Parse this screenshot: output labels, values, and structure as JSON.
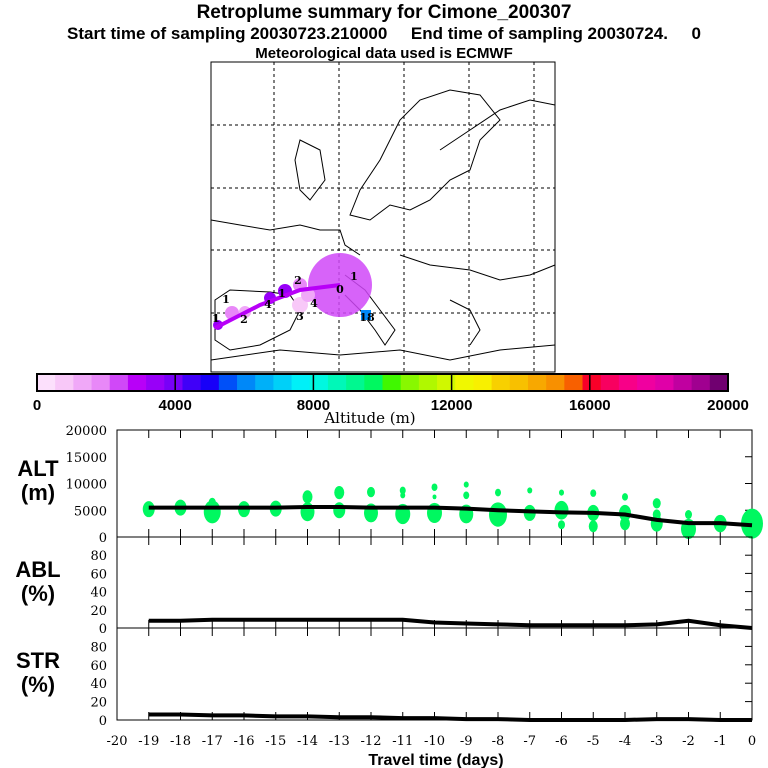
{
  "header": {
    "title": "Retroplume summary for Cimone_200307",
    "subtitle": "Start time of sampling 20030723.210000     End time of sampling 20030724.     0",
    "met": "Meteorological data used is ECMWF"
  },
  "colorbar": {
    "label": "Altitude (m)",
    "ticks": [
      "0",
      "4000",
      "8000",
      "12000",
      "16000",
      "20000"
    ],
    "colors": [
      "#fce0fc",
      "#f8c8f8",
      "#f0a8f8",
      "#e888f8",
      "#d048f8",
      "#b800f8",
      "#9800f8",
      "#7800f8",
      "#4000f8",
      "#1800f8",
      "#0050f8",
      "#0088f8",
      "#00b0f8",
      "#00d0f8",
      "#00f0f8",
      "#00f8e0",
      "#00f8b8",
      "#00f890",
      "#00f860",
      "#40f800",
      "#88f800",
      "#b0f800",
      "#d0f800",
      "#f0f800",
      "#f8f000",
      "#f8d000",
      "#f8c000",
      "#f8a800",
      "#f89000",
      "#f86000",
      "#f80028",
      "#f80060",
      "#f80088",
      "#f000a0",
      "#e000a8",
      "#c000a0",
      "#a00090",
      "#700070"
    ]
  },
  "map": {
    "labels": [
      "0",
      "1",
      "1",
      "1",
      "2",
      "3",
      "4",
      "4",
      "1",
      "2",
      "18"
    ]
  },
  "chart_data": [
    {
      "type": "line",
      "name": "ALT",
      "ylabel": "ALT\n(m)",
      "ylabel_lines": [
        "ALT",
        "(m)"
      ],
      "ylim": [
        0,
        20000
      ],
      "yticks": [
        "0",
        "5000",
        "10000",
        "15000",
        "20000"
      ],
      "x": [
        -19,
        -18,
        -17,
        -16,
        -15,
        -14,
        -13,
        -12,
        -11,
        -10,
        -9,
        -8,
        -7,
        -6,
        -5,
        -4,
        -3,
        -2,
        -1,
        0
      ],
      "values": [
        5500,
        5500,
        5500,
        5500,
        5500,
        5600,
        5600,
        5500,
        5500,
        5500,
        5300,
        5000,
        4800,
        4600,
        4500,
        4200,
        3200,
        2600,
        2600,
        2200
      ],
      "clusters": [
        [
          -19,
          5200,
          1.0
        ],
        [
          -18,
          5500,
          1.0
        ],
        [
          -17,
          4700,
          1.5
        ],
        [
          -17,
          6500,
          0.5
        ],
        [
          -16,
          5200,
          1.0
        ],
        [
          -15,
          5300,
          1.0
        ],
        [
          -14,
          4700,
          1.2
        ],
        [
          -14,
          7500,
          0.8
        ],
        [
          -13,
          5000,
          1.0
        ],
        [
          -13,
          8300,
          0.8
        ],
        [
          -12,
          4500,
          1.2
        ],
        [
          -12,
          8400,
          0.6
        ],
        [
          -11,
          4300,
          1.3
        ],
        [
          -11,
          8700,
          0.4
        ],
        [
          -11,
          7800,
          0.3
        ],
        [
          -10,
          4500,
          1.3
        ],
        [
          -10,
          9300,
          0.4
        ],
        [
          -10,
          7500,
          0.2
        ],
        [
          -9,
          4300,
          1.2
        ],
        [
          -9,
          9800,
          0.3
        ],
        [
          -9,
          7800,
          0.4
        ],
        [
          -8,
          4200,
          1.6
        ],
        [
          -8,
          8300,
          0.4
        ],
        [
          -7,
          4500,
          1.0
        ],
        [
          -7,
          8700,
          0.3
        ],
        [
          -6,
          5000,
          1.2
        ],
        [
          -6,
          2300,
          0.5
        ],
        [
          -6,
          8300,
          0.3
        ],
        [
          -5,
          4500,
          1.0
        ],
        [
          -5,
          2000,
          0.7
        ],
        [
          -5,
          8200,
          0.4
        ],
        [
          -4,
          4500,
          1.0
        ],
        [
          -4,
          2500,
          0.8
        ],
        [
          -4,
          7500,
          0.4
        ],
        [
          -3,
          2500,
          1.0
        ],
        [
          -3,
          6300,
          0.6
        ],
        [
          -3,
          4200,
          0.6
        ],
        [
          -2,
          1500,
          1.3
        ],
        [
          -2,
          4200,
          0.5
        ],
        [
          -1,
          2500,
          1.1
        ],
        [
          0,
          2500,
          2.0
        ]
      ]
    },
    {
      "type": "line",
      "name": "ABL",
      "ylabel_lines": [
        "ABL",
        "(%)"
      ],
      "ylim": [
        0,
        100
      ],
      "yticks": [
        "0",
        "20",
        "40",
        "60",
        "80"
      ],
      "x": [
        -19,
        -18,
        -17,
        -16,
        -15,
        -14,
        -13,
        -12,
        -11,
        -10,
        -9,
        -8,
        -7,
        -6,
        -5,
        -4,
        -3,
        -2,
        -1,
        0
      ],
      "values": [
        8,
        8,
        9,
        9,
        9,
        9,
        9,
        9,
        9,
        6,
        5,
        4,
        3,
        3,
        3,
        3,
        4,
        8,
        3,
        0
      ]
    },
    {
      "type": "line",
      "name": "STR",
      "ylabel_lines": [
        "STR",
        "(%)"
      ],
      "ylim": [
        0,
        100
      ],
      "yticks": [
        "0",
        "20",
        "40",
        "60",
        "80"
      ],
      "x": [
        -19,
        -18,
        -17,
        -16,
        -15,
        -14,
        -13,
        -12,
        -11,
        -10,
        -9,
        -8,
        -7,
        -6,
        -5,
        -4,
        -3,
        -2,
        -1,
        0
      ],
      "values": [
        6,
        6,
        5,
        5,
        4,
        4,
        3,
        3,
        2,
        2,
        1,
        1,
        0,
        0,
        0,
        0,
        1,
        1,
        0,
        0
      ],
      "xlabel": "Travel time (days)",
      "xticks": [
        "-20",
        "-19",
        "-18",
        "-17",
        "-16",
        "-15",
        "-14",
        "-13",
        "-12",
        "-11",
        "-10",
        "-9",
        "-8",
        "-7",
        "-6",
        "-5",
        "-4",
        "-3",
        "-2",
        "-1",
        "0"
      ]
    }
  ],
  "colors": {
    "line": "#000000",
    "cluster": "#00f860"
  }
}
